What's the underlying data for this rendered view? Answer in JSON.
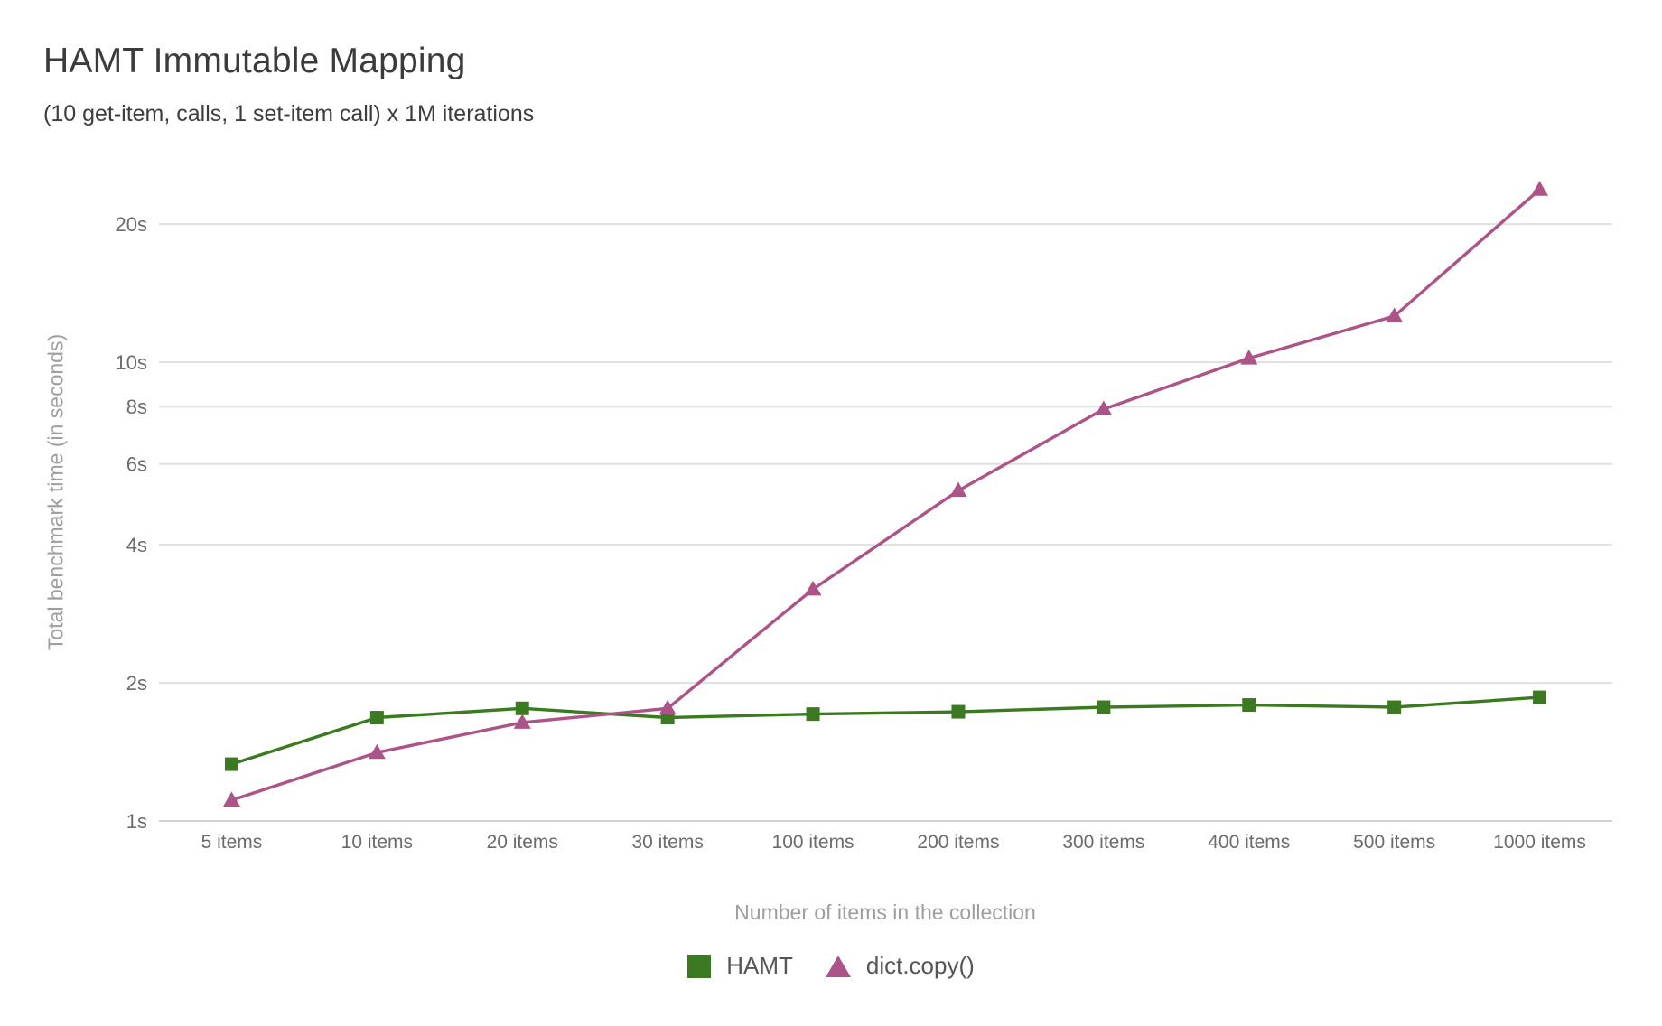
{
  "chart": {
    "title": "HAMT Immutable Mapping",
    "subtitle": "(10 get-item, calls, 1 set-item call) x 1M iterations",
    "xlabel": "Number of items in the collection",
    "ylabel": "Total benchmark time (in seconds)"
  },
  "chart_data": {
    "type": "line",
    "x_categories": [
      "5 items",
      "10 items",
      "20 items",
      "30 items",
      "100 items",
      "200 items",
      "300 items",
      "400 items",
      "500 items",
      "1000 items"
    ],
    "y_scale": "log",
    "y_ticks": [
      {
        "value": 1,
        "label": "1s"
      },
      {
        "value": 2,
        "label": "2s"
      },
      {
        "value": 4,
        "label": "4s"
      },
      {
        "value": 6,
        "label": "6s"
      },
      {
        "value": 8,
        "label": "8s"
      },
      {
        "value": 10,
        "label": "10s"
      },
      {
        "value": 20,
        "label": "20s"
      }
    ],
    "ylim": [
      1,
      26
    ],
    "grid": true,
    "legend_position": "bottom",
    "series": [
      {
        "name": "HAMT",
        "marker": "square",
        "color": "#3c7a21",
        "values": [
          1.33,
          1.68,
          1.76,
          1.68,
          1.71,
          1.73,
          1.77,
          1.79,
          1.77,
          1.86
        ]
      },
      {
        "name": "dict.copy()",
        "marker": "triangle",
        "color": "#ac5487",
        "values": [
          1.11,
          1.41,
          1.64,
          1.76,
          3.2,
          5.25,
          7.9,
          10.2,
          12.6,
          23.8
        ]
      }
    ]
  },
  "colors": {
    "grid_line": "#e0e0e0",
    "baseline": "#d2d2d2",
    "tick_label": "#6b6b6b",
    "axis_title": "#9e9e9e",
    "title_text": "#3b3b3b"
  }
}
